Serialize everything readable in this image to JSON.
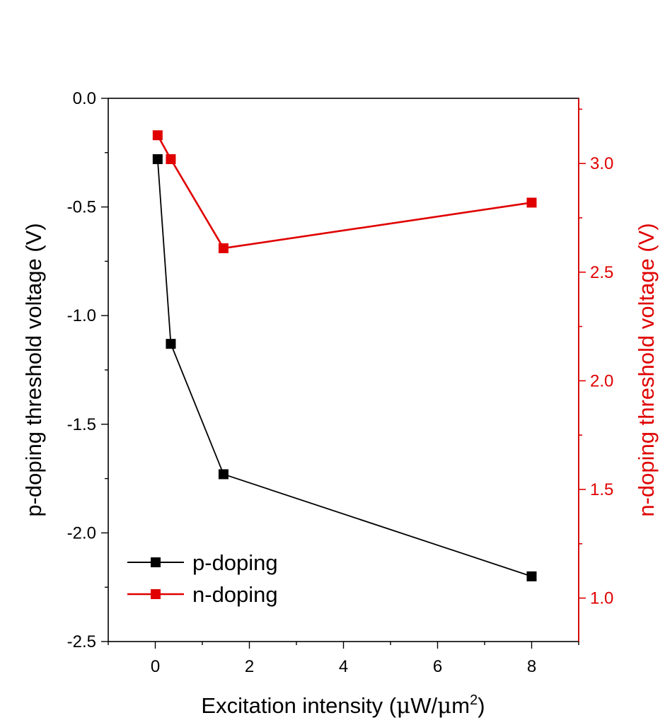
{
  "chart_data": {
    "type": "line",
    "xlabel_main": "Excitation intensity (",
    "xlabel_mu1": "μ",
    "xlabel_mid": "W/",
    "xlabel_mu2": "μ",
    "xlabel_m": "m",
    "xlabel_sup": "2",
    "xlabel_close": ")",
    "ylabel_left": "p-doping threshold voltage (V)",
    "ylabel_right": "n-doping threshold voltage (V)",
    "xlim": [
      -1,
      9
    ],
    "ylim_left": [
      -2.5,
      0.0
    ],
    "ylim_right": [
      0.8,
      3.3
    ],
    "x_ticks": [
      0,
      2,
      4,
      6,
      8
    ],
    "x_tick_labels": [
      "0",
      "2",
      "4",
      "6",
      "8"
    ],
    "y_left_ticks": [
      0.0,
      -0.5,
      -1.0,
      -1.5,
      -2.0,
      -2.5
    ],
    "y_left_tick_labels": [
      "0.0",
      "-0.5",
      "-1.0",
      "-1.5",
      "-2.0",
      "-2.5"
    ],
    "y_right_ticks": [
      1.0,
      1.5,
      2.0,
      2.5,
      3.0
    ],
    "y_right_tick_labels": [
      "1.0",
      "1.5",
      "2.0",
      "2.5",
      "3.0"
    ],
    "series": [
      {
        "name": "p-doping",
        "axis": "left",
        "color": "#000000",
        "x": [
          0.05,
          0.33,
          1.45,
          8.0
        ],
        "y": [
          -0.28,
          -1.13,
          -1.73,
          -2.2
        ]
      },
      {
        "name": "n-doping",
        "axis": "right",
        "color": "#e00000",
        "x": [
          0.05,
          0.33,
          1.45,
          8.0
        ],
        "y": [
          3.13,
          3.02,
          2.61,
          2.82
        ]
      }
    ],
    "legend_position": "bottom-left"
  }
}
